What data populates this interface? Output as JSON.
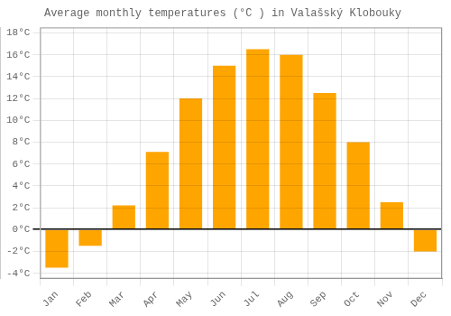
{
  "chart_data": {
    "type": "bar",
    "title": "Average monthly temperatures (°C ) in Valašský Klobouky",
    "categories": [
      "Jan",
      "Feb",
      "Mar",
      "Apr",
      "May",
      "Jun",
      "Jul",
      "Aug",
      "Sep",
      "Oct",
      "Nov",
      "Dec"
    ],
    "values": [
      -3.5,
      -1.5,
      2.2,
      7.1,
      12.0,
      15.0,
      16.5,
      16.0,
      12.5,
      8.0,
      2.5,
      -2.0
    ],
    "color": "#FFA500",
    "ylim": [
      -4.5,
      18.5
    ],
    "yticks": [
      {
        "value": -4,
        "label": "-4°C"
      },
      {
        "value": -2,
        "label": "-2°C"
      },
      {
        "value": 0,
        "label": "0°C"
      },
      {
        "value": 2,
        "label": "2°C"
      },
      {
        "value": 4,
        "label": "4°C"
      },
      {
        "value": 6,
        "label": "6°C"
      },
      {
        "value": 8,
        "label": "8°C"
      },
      {
        "value": 10,
        "label": "10°C"
      },
      {
        "value": 12,
        "label": "12°C"
      },
      {
        "value": 14,
        "label": "14°C"
      },
      {
        "value": 16,
        "label": "16°C"
      },
      {
        "value": 18,
        "label": "18°C"
      }
    ],
    "grid": true
  }
}
